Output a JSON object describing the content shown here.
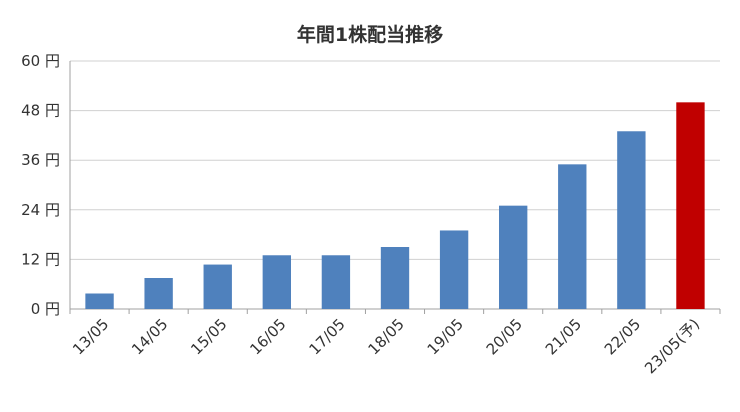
{
  "chart_data": {
    "type": "bar",
    "title": "年間1株配当推移",
    "categories": [
      "13/05",
      "14/05",
      "15/05",
      "16/05",
      "17/05",
      "18/05",
      "19/05",
      "20/05",
      "21/05",
      "22/05",
      "23/05(予)"
    ],
    "values": [
      3.75,
      7.5,
      10.75,
      13,
      13,
      15,
      19,
      25,
      35,
      43,
      50
    ],
    "ylim": [
      0,
      60
    ],
    "yticks": [
      0,
      12,
      24,
      36,
      48,
      60
    ],
    "ytick_suffix": " 円",
    "grid": true,
    "colors": {
      "actual": "#4f81bd",
      "forecast": "#c00000",
      "grid": "#d0d0d0",
      "axis": "#a0a0a0"
    },
    "forecast_index": 10
  }
}
